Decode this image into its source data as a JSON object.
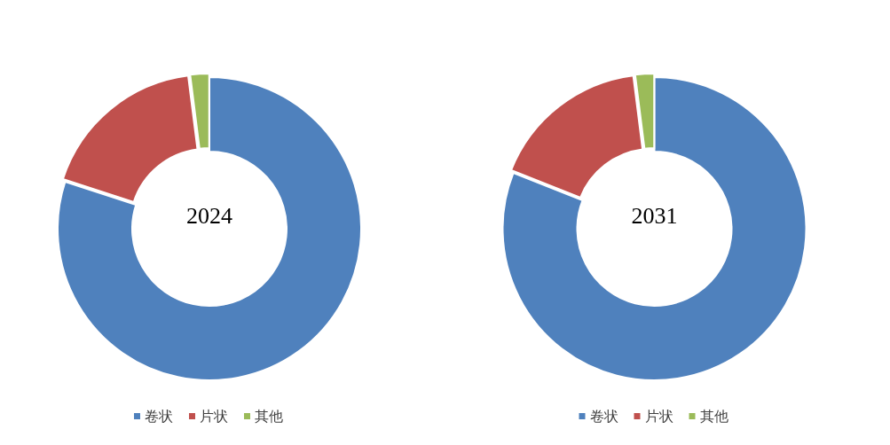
{
  "chart_data": [
    {
      "type": "donut",
      "title": "2024",
      "categories": [
        "卷状",
        "片状",
        "其他"
      ],
      "values": [
        80,
        18,
        2
      ],
      "colors": [
        "#4f81bd",
        "#c0504d",
        "#9bbb59"
      ],
      "legend": "bottom"
    },
    {
      "type": "donut",
      "title": "2031",
      "categories": [
        "卷状",
        "片状",
        "其他"
      ],
      "values": [
        81,
        17,
        2
      ],
      "colors": [
        "#4f81bd",
        "#c0504d",
        "#9bbb59"
      ],
      "legend": "bottom"
    }
  ]
}
